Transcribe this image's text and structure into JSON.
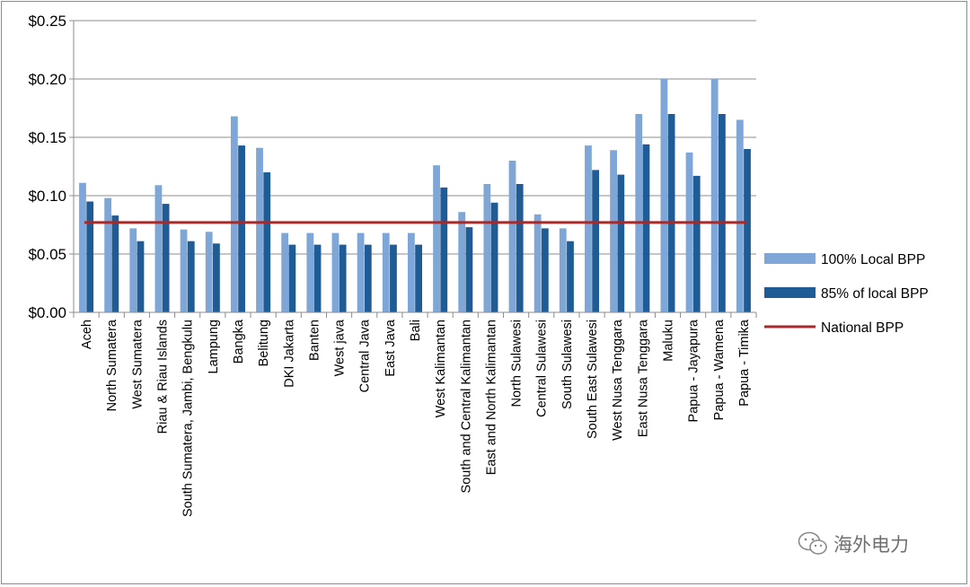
{
  "chart_data": {
    "type": "bar",
    "title": "",
    "xlabel": "",
    "ylabel": "",
    "ylim": [
      0,
      0.25
    ],
    "yticks": [
      0,
      0.05,
      0.1,
      0.15,
      0.2,
      0.25
    ],
    "ytick_labels": [
      "$0.00",
      "$0.05",
      "$0.10",
      "$0.15",
      "$0.20",
      "$0.25"
    ],
    "grid": true,
    "legend_position": "right",
    "categories": [
      "Aceh",
      "North Sumatera",
      "West Sumatera",
      "Riau & Riau Islands",
      "South Sumatera, Jambi, Bengkulu",
      "Lampung",
      "Bangka",
      "Belitung",
      "DKI Jakarta",
      "Banten",
      "West java",
      "Central Java",
      "East Java",
      "Bali",
      "West Kalimantan",
      "South and Central Kalimantan",
      "East and North Kalimantan",
      "North Sulawesi",
      "Central Sulawesi",
      "South Sulawesi",
      "South East Sulawesi",
      "West Nusa Tenggara",
      "East Nusa Tenggara",
      "Maluku",
      "Papua - Jayapura",
      "Papua - Wamena",
      "Papua - Timika"
    ],
    "series": [
      {
        "name": "100% Local BPP",
        "type": "bar",
        "color": "#7ea6d6",
        "values": [
          0.111,
          0.098,
          0.072,
          0.109,
          0.071,
          0.069,
          0.168,
          0.141,
          0.068,
          0.068,
          0.068,
          0.068,
          0.068,
          0.068,
          0.126,
          0.086,
          0.11,
          0.13,
          0.084,
          0.072,
          0.143,
          0.139,
          0.17,
          0.2,
          0.137,
          0.2,
          0.165
        ]
      },
      {
        "name": "85% of local BPP",
        "type": "bar",
        "color": "#1f5c96",
        "values": [
          0.095,
          0.083,
          0.061,
          0.093,
          0.061,
          0.059,
          0.143,
          0.12,
          0.058,
          0.058,
          0.058,
          0.058,
          0.058,
          0.058,
          0.107,
          0.073,
          0.094,
          0.11,
          0.072,
          0.061,
          0.122,
          0.118,
          0.144,
          0.17,
          0.117,
          0.17,
          0.14
        ]
      },
      {
        "name": "National BPP",
        "type": "line",
        "color": "#a52a2a",
        "value": 0.077
      }
    ]
  },
  "watermark": {
    "text": "海外电力",
    "icon": "wechat-icon"
  }
}
